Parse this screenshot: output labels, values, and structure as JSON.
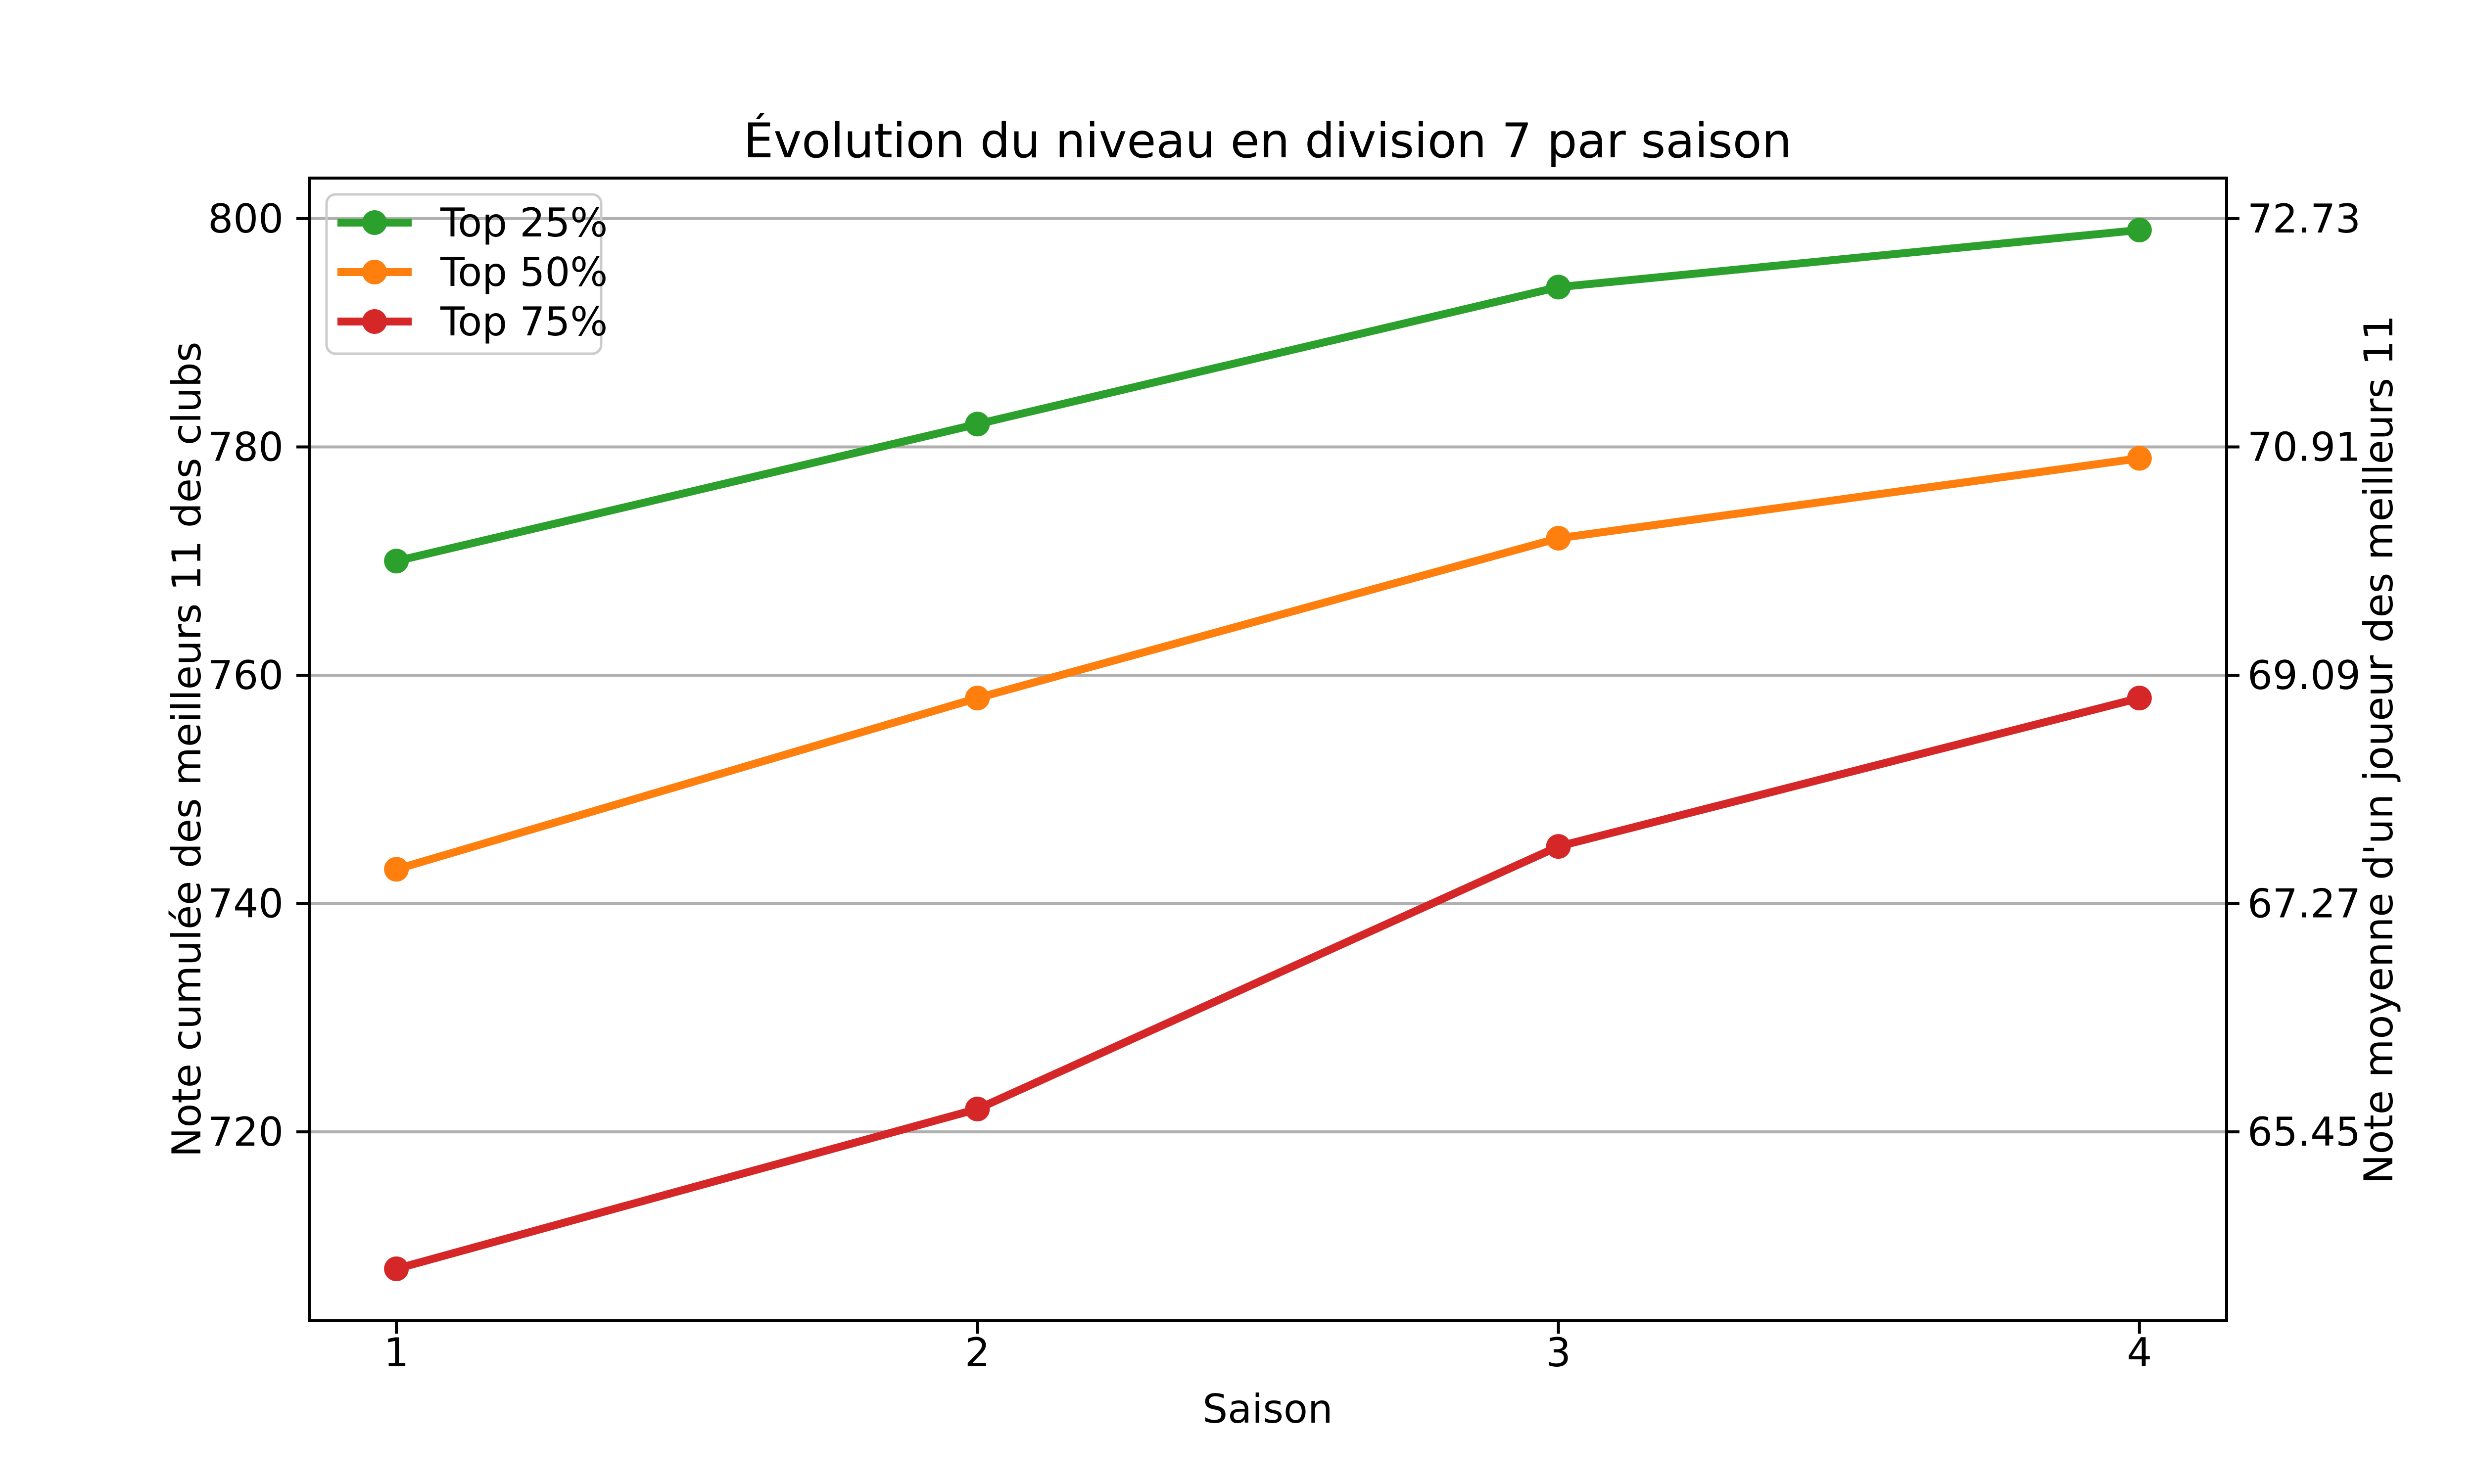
{
  "chart_data": {
    "type": "line",
    "title": "Évolution du niveau en division 7 par saison",
    "xlabel": "Saison",
    "ylabel_left": "Note cumulée des meilleurs 11 des clubs",
    "ylabel_right": "Note moyenne d'un joueur des meilleurs 11",
    "x": [
      1,
      2,
      3,
      4
    ],
    "xticklabels": [
      "1",
      "2",
      "3",
      "4"
    ],
    "series": [
      {
        "name": "Top 25%",
        "color": "#2ca02c",
        "values": [
          770,
          782,
          794,
          799
        ]
      },
      {
        "name": "Top 50%",
        "color": "#ff7f0e",
        "values": [
          743,
          758,
          772,
          779
        ]
      },
      {
        "name": "Top 75%",
        "color": "#d62728",
        "values": [
          708,
          722,
          745,
          758
        ]
      }
    ],
    "left_yticks": [
      720,
      740,
      760,
      780,
      800
    ],
    "left_yticklabels": [
      "720",
      "740",
      "760",
      "780",
      "800"
    ],
    "right_yticklabels": [
      "65.45",
      "67.27",
      "69.09",
      "70.91",
      "72.73"
    ],
    "xlim": [
      0.85,
      4.15
    ],
    "ylim": [
      703.45,
      803.55
    ],
    "grid": "horizontal-only",
    "legend_position": "upper-left",
    "colors": {
      "background": "#ffffff",
      "spine": "#000000",
      "grid": "#b0b0b0",
      "legend_border": "#cccccc",
      "text": "#000000"
    }
  }
}
